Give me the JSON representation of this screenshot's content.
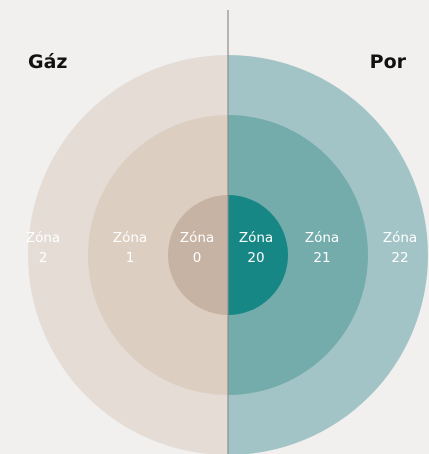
{
  "diagram": {
    "left": {
      "title": "Gáz",
      "zones": [
        {
          "word": "Zóna",
          "number": "2"
        },
        {
          "word": "Zóna",
          "number": "1"
        },
        {
          "word": "Zóna",
          "number": "0"
        }
      ]
    },
    "right": {
      "title": "Por",
      "zones": [
        {
          "word": "Zóna",
          "number": "20"
        },
        {
          "word": "Zóna",
          "number": "21"
        },
        {
          "word": "Zóna",
          "number": "22"
        }
      ]
    }
  }
}
